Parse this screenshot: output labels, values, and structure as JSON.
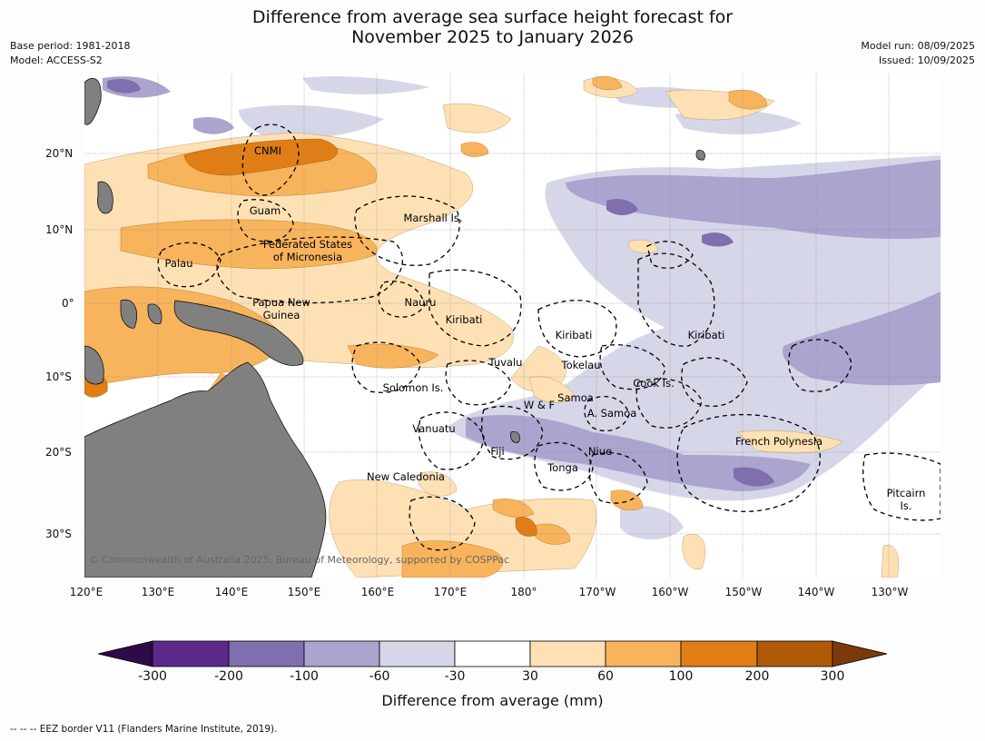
{
  "title_line1": "Difference from average sea surface height forecast for",
  "title_line2": "November 2025 to January 2026",
  "meta": {
    "base_period": "Base period: 1981-2018",
    "model": "Model: ACCESS-S2",
    "model_run": "Model run: 08/09/2025",
    "issued": "Issued: 10/09/2025"
  },
  "lon_labels": [
    "120°E",
    "130°E",
    "140°E",
    "150°E",
    "160°E",
    "170°E",
    "180°",
    "170°W",
    "160°W",
    "150°W",
    "140°W",
    "130°W"
  ],
  "lat_labels": [
    "20°N",
    "10°N",
    "0°",
    "10°S",
    "20°S",
    "30°S"
  ],
  "places": {
    "cnmi": "CNMI",
    "guam": "Guam",
    "marshall": "Marshall Is.",
    "fsm": "Federated States\nof Micronesia",
    "palau": "Palau",
    "png": "Papua New\nGuinea",
    "nauru": "Nauru",
    "kiribati_w": "Kiribati",
    "kiribati_c": "Kiribati",
    "kiribati_e": "Kiribati",
    "tuvalu": "Tuvalu",
    "tokelau": "Tokelau",
    "solomon": "Solomon Is.",
    "cook": "Cook Is.",
    "samoa": "Samoa",
    "wf": "W & F",
    "asamoa": "A. Samoa",
    "vanuatu": "Vanuatu",
    "fiji": "Fiji",
    "niue": "Niue",
    "frpoly": "French Polynesia",
    "tonga": "Tonga",
    "newcal": "New Caledonia",
    "pitcairn": "Pitcairn\nIs."
  },
  "copyright": "© Commonwealth of Australia 2025, Bureau of Meteorology, supported by COSPPac",
  "colorbar": {
    "ticks": [
      "-300",
      "-200",
      "-100",
      "-60",
      "-30",
      "30",
      "60",
      "100",
      "200",
      "300"
    ],
    "colors": [
      "#2d0a4a",
      "#5b2a8a",
      "#7f6fae",
      "#aba4cf",
      "#d6d6e9",
      "#ffffff",
      "#fde1b5",
      "#f8b45c",
      "#e07e15",
      "#b05a08",
      "#7a3a0a"
    ],
    "label": "Difference from average (mm)"
  },
  "land_color": "#808080",
  "footer": "--  --  -- EEZ border V11 (Flanders Marine Institute, 2019)."
}
